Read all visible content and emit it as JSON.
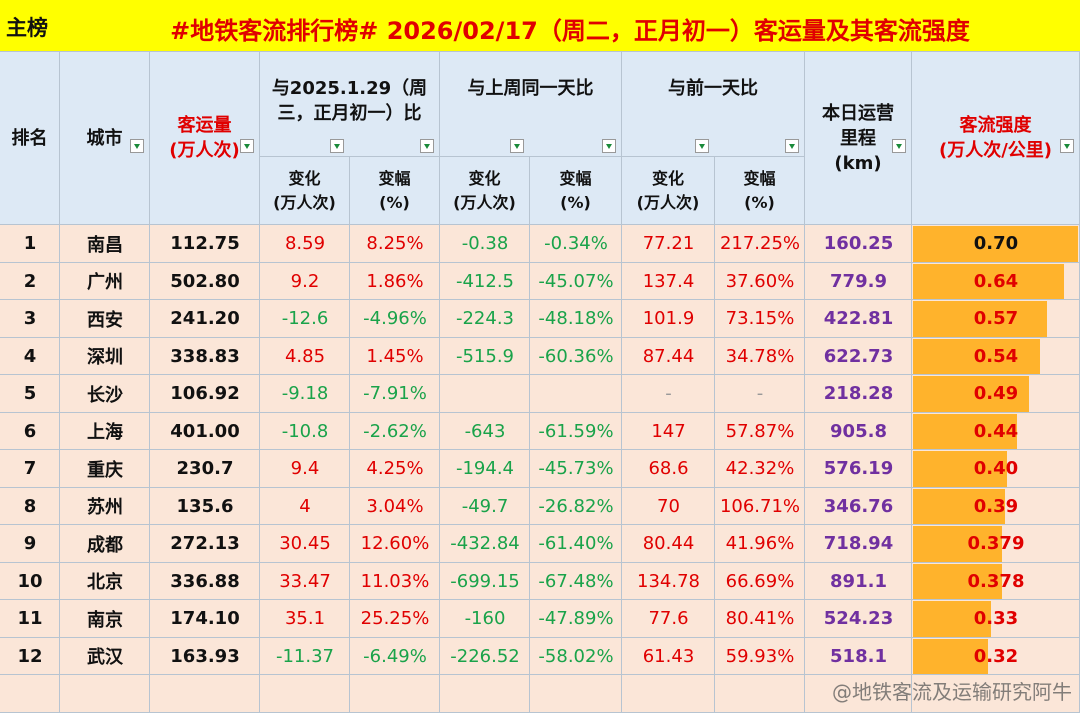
{
  "header": {
    "tag": "主榜",
    "title": "#地铁客流排行榜# 2026/02/17（周二，正月初一）客运量及其客流强度"
  },
  "table": {
    "columns": [
      {
        "label": "排名"
      },
      {
        "label": "城市"
      },
      {
        "label": "客运量\n(万人次)"
      },
      {
        "group": "与2025.1.29（周三，正月初一）比",
        "sub": [
          "变化\n(万人次)",
          "变幅\n(%)"
        ]
      },
      {
        "group": "与上周同一天比",
        "sub": [
          "变化\n(万人次)",
          "变幅\n(%)"
        ]
      },
      {
        "group": "与前一天比",
        "sub": [
          "变化\n(万人次)",
          "变幅\n(%)"
        ]
      },
      {
        "label": "本日运营\n里程\n(km)"
      },
      {
        "label": "客流强度\n(万人次/公里)"
      }
    ],
    "rows": [
      [
        "1",
        "南昌",
        "112.75",
        "8.59",
        "8.25%",
        "-0.38",
        "-0.34%",
        "77.21",
        "217.25%",
        "160.25",
        "0.70"
      ],
      [
        "2",
        "广州",
        "502.80",
        "9.2",
        "1.86%",
        "-412.5",
        "-45.07%",
        "137.4",
        "37.60%",
        "779.9",
        "0.64"
      ],
      [
        "3",
        "西安",
        "241.20",
        "-12.6",
        "-4.96%",
        "-224.3",
        "-48.18%",
        "101.9",
        "73.15%",
        "422.81",
        "0.57"
      ],
      [
        "4",
        "深圳",
        "338.83",
        "4.85",
        "1.45%",
        "-515.9",
        "-60.36%",
        "87.44",
        "34.78%",
        "622.73",
        "0.54"
      ],
      [
        "5",
        "长沙",
        "106.92",
        "-9.18",
        "-7.91%",
        null,
        null,
        "-",
        "-",
        "218.28",
        "0.49"
      ],
      [
        "6",
        "上海",
        "401.00",
        "-10.8",
        "-2.62%",
        "-643",
        "-61.59%",
        "147",
        "57.87%",
        "905.8",
        "0.44"
      ],
      [
        "7",
        "重庆",
        "230.7",
        "9.4",
        "4.25%",
        "-194.4",
        "-45.73%",
        "68.6",
        "42.32%",
        "576.19",
        "0.40"
      ],
      [
        "8",
        "苏州",
        "135.6",
        "4",
        "3.04%",
        "-49.7",
        "-26.82%",
        "70",
        "106.71%",
        "346.76",
        "0.39"
      ],
      [
        "9",
        "成都",
        "272.13",
        "30.45",
        "12.60%",
        "-432.84",
        "-61.40%",
        "80.44",
        "41.96%",
        "718.94",
        "0.379"
      ],
      [
        "10",
        "北京",
        "336.88",
        "33.47",
        "11.03%",
        "-699.15",
        "-67.48%",
        "134.78",
        "66.69%",
        "891.1",
        "0.378"
      ],
      [
        "11",
        "南京",
        "174.10",
        "35.1",
        "25.25%",
        "-160",
        "-47.89%",
        "77.6",
        "80.41%",
        "524.23",
        "0.33"
      ],
      [
        "12",
        "武汉",
        "163.93",
        "-11.37",
        "-6.49%",
        "-226.52",
        "-58.02%",
        "61.43",
        "59.93%",
        "518.1",
        "0.32"
      ]
    ]
  },
  "watermark": "@地铁客流及运输研究阿牛"
}
